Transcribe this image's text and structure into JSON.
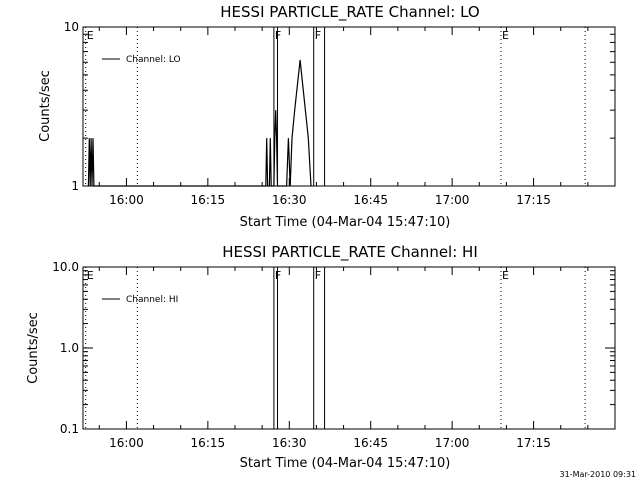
{
  "footer_timestamp": "31-Mar-2010 09:31",
  "chart_data": [
    {
      "type": "line",
      "title": "HESSI PARTICLE_RATE Channel: LO",
      "xlabel": "Start Time (04-Mar-04 15:47:10)",
      "ylabel": "Counts/sec",
      "y_scale": "log",
      "ylim": [
        1,
        10
      ],
      "y_ticks": [
        {
          "value": 1,
          "label": "1"
        },
        {
          "value": 10,
          "label": "10"
        }
      ],
      "x_range": [
        "15:52",
        "17:30"
      ],
      "x_ticks": [
        "16:00",
        "16:15",
        "16:30",
        "16:45",
        "17:00",
        "17:15"
      ],
      "legend": {
        "label": "Channel: LO",
        "placement": "top-left"
      },
      "series": [
        {
          "name": "Channel: LO",
          "points": [
            [
              "15:53:00",
              1
            ],
            [
              "15:53:10",
              2
            ],
            [
              "15:53:20",
              1
            ],
            [
              "15:53:30",
              2
            ],
            [
              "15:53:40",
              1
            ],
            [
              "15:53:50",
              2
            ],
            [
              "15:54:00",
              1
            ],
            [
              "16:25:40",
              1
            ],
            [
              "16:25:50",
              2
            ],
            [
              "16:26:00",
              1
            ],
            [
              "16:26:20",
              1
            ],
            [
              "16:26:30",
              2
            ],
            [
              "16:26:40",
              1
            ],
            [
              "16:27:10",
              1
            ],
            [
              "16:27:20",
              2
            ],
            [
              "16:27:30",
              3
            ],
            [
              "16:27:40",
              2
            ],
            [
              "16:27:50",
              1
            ],
            [
              "16:29:30",
              1
            ],
            [
              "16:29:50",
              2
            ],
            [
              "16:30:10",
              1
            ],
            [
              "16:30:30",
              2
            ],
            [
              "16:31:00",
              3
            ],
            [
              "16:32:00",
              6.2
            ],
            [
              "16:33:30",
              2
            ],
            [
              "16:34:00",
              1
            ]
          ]
        }
      ],
      "markers": [
        {
          "time": "15:52:30",
          "label": "E",
          "style": "dotted"
        },
        {
          "time": "16:02:00",
          "label": "",
          "style": "dotted"
        },
        {
          "time": "16:27:10",
          "label": "F",
          "style": "solid"
        },
        {
          "time": "16:27:50",
          "label": "",
          "style": "solid"
        },
        {
          "time": "16:34:30",
          "label": "F",
          "style": "solid"
        },
        {
          "time": "16:36:30",
          "label": "",
          "style": "solid"
        },
        {
          "time": "17:09:00",
          "label": "E",
          "style": "dotted"
        },
        {
          "time": "17:24:30",
          "label": "",
          "style": "dotted"
        }
      ]
    },
    {
      "type": "line",
      "title": "HESSI PARTICLE_RATE Channel: HI",
      "xlabel": "Start Time (04-Mar-04 15:47:10)",
      "ylabel": "Counts/sec",
      "y_scale": "log",
      "ylim": [
        0.1,
        10
      ],
      "y_ticks": [
        {
          "value": 0.1,
          "label": "0.1"
        },
        {
          "value": 1,
          "label": "1.0"
        },
        {
          "value": 10,
          "label": "10.0"
        }
      ],
      "x_range": [
        "15:52",
        "17:30"
      ],
      "x_ticks": [
        "16:00",
        "16:15",
        "16:30",
        "16:45",
        "17:00",
        "17:15"
      ],
      "legend": {
        "label": "Channel: HI",
        "placement": "top-left"
      },
      "series": [
        {
          "name": "Channel: HI",
          "points": []
        }
      ],
      "markers": [
        {
          "time": "15:52:30",
          "label": "E",
          "style": "dotted"
        },
        {
          "time": "16:02:00",
          "label": "",
          "style": "dotted"
        },
        {
          "time": "16:27:10",
          "label": "F",
          "style": "solid"
        },
        {
          "time": "16:27:50",
          "label": "",
          "style": "solid"
        },
        {
          "time": "16:34:30",
          "label": "F",
          "style": "solid"
        },
        {
          "time": "16:36:30",
          "label": "",
          "style": "solid"
        },
        {
          "time": "17:09:00",
          "label": "E",
          "style": "dotted"
        },
        {
          "time": "17:24:30",
          "label": "",
          "style": "dotted"
        }
      ]
    }
  ]
}
